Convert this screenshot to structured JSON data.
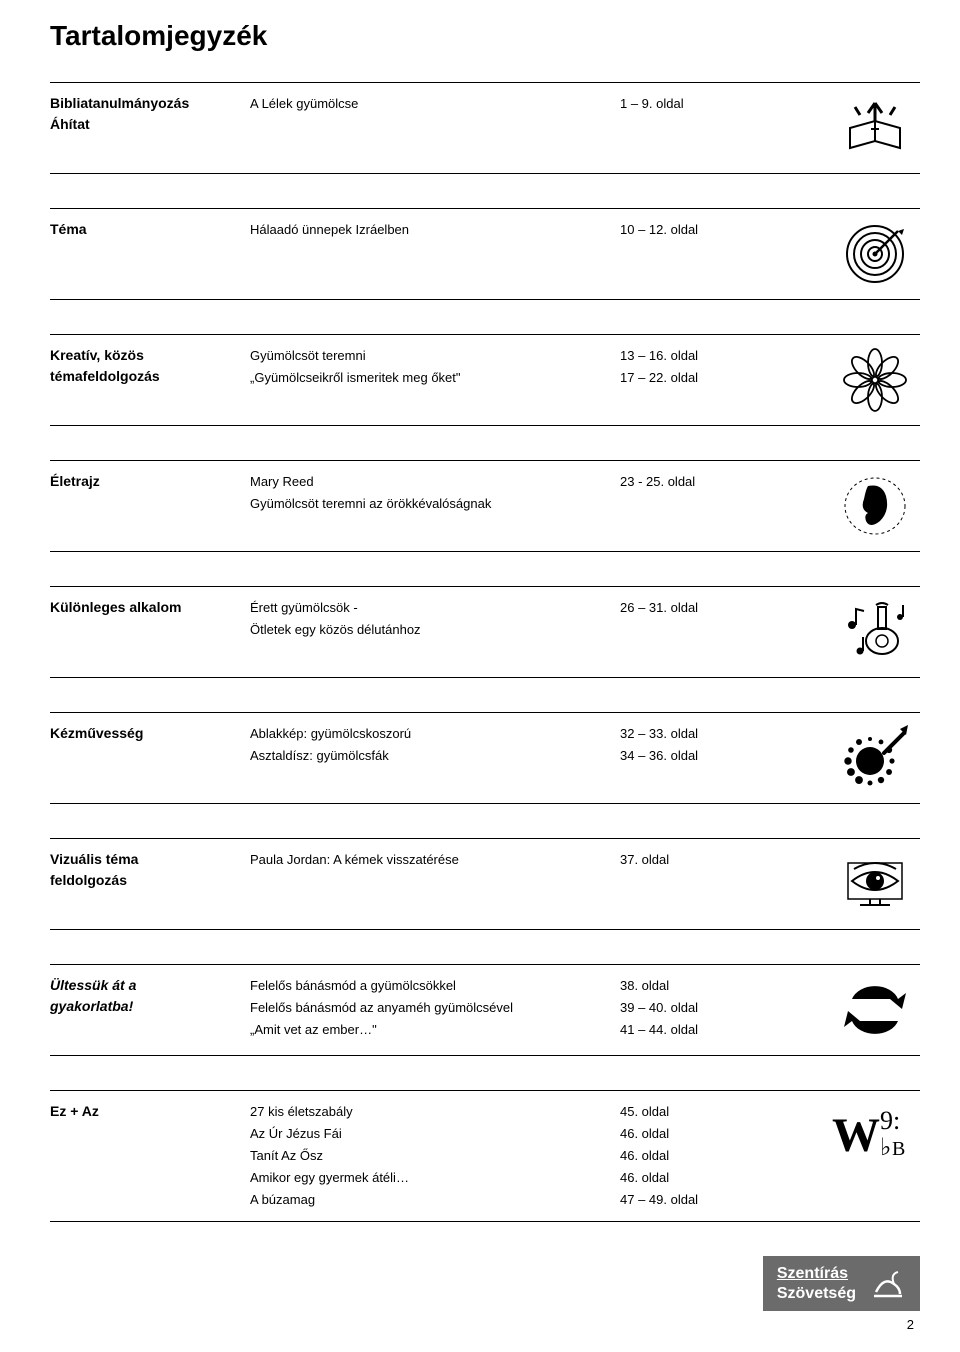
{
  "title": "Tartalomjegyzék",
  "sections": [
    {
      "heading": "Bibliatanulmányozás\nÁhítat",
      "italic": false,
      "lines": [
        {
          "text": "A Lélek gyümölcse",
          "pages": "1 – 9. oldal"
        }
      ],
      "icon": "book"
    },
    {
      "heading": "Téma",
      "italic": false,
      "lines": [
        {
          "text": "Hálaadó ünnepek Izráelben",
          "pages": "10 – 12. oldal"
        }
      ],
      "icon": "target"
    },
    {
      "heading": "Kreatív, közös\ntémafeldolgozás",
      "italic": false,
      "lines": [
        {
          "text": "Gyümölcsöt teremni",
          "pages": "13 – 16. oldal"
        },
        {
          "text": "„Gyümölcseikről ismeritek meg őket\"",
          "pages": "17 – 22. oldal"
        }
      ],
      "icon": "flower"
    },
    {
      "heading": "Életrajz",
      "italic": false,
      "lines": [
        {
          "text": "Mary Reed",
          "pages": "23 - 25. oldal"
        },
        {
          "text": "Gyümölcsöt teremni az örökkévalóságnak",
          "pages": ""
        }
      ],
      "icon": "head"
    },
    {
      "heading": "Különleges alkalom",
      "italic": false,
      "lines": [
        {
          "text": "Érett gyümölcsök -",
          "pages": "26 – 31. oldal"
        },
        {
          "text": "Ötletek egy közös délutánhoz",
          "pages": ""
        }
      ],
      "icon": "music"
    },
    {
      "heading": "Kézművesség",
      "italic": false,
      "lines": [
        {
          "text": "Ablakkép: gyümölcskoszorú",
          "pages": "32 – 33. oldal"
        },
        {
          "text": "Asztaldísz: gyümölcsfák",
          "pages": "34 – 36. oldal"
        }
      ],
      "icon": "splat"
    },
    {
      "heading": "Vizuális téma\nfeldolgozás",
      "italic": false,
      "lines": [
        {
          "text": "Paula Jordan: A kémek visszatérése",
          "pages": "37. oldal"
        }
      ],
      "icon": "eye"
    },
    {
      "heading": "Ültessük át a\ngyakorlatba!",
      "italic": true,
      "lines": [
        {
          "text": "Felelős bánásmód a gyümölcsökkel",
          "pages": "38. oldal"
        },
        {
          "text": "Felelős bánásmód az anyaméh gyümölcsével",
          "pages": "39 – 40. oldal"
        },
        {
          "text": "„Amit vet az ember…\"",
          "pages": "41 – 44. oldal"
        }
      ],
      "icon": "arrows"
    },
    {
      "heading": "Ez + Az",
      "italic": false,
      "lines": [
        {
          "text": "27 kis életszabály",
          "pages": "45. oldal"
        },
        {
          "text": "Az Úr Jézus Fái",
          "pages": "46. oldal"
        },
        {
          "text": "Tanít Az Ősz",
          "pages": "46. oldal"
        },
        {
          "text": "Amikor egy gyermek átéli…",
          "pages": "46. oldal"
        },
        {
          "text": "A búzamag",
          "pages": "47 – 49. oldal"
        }
      ],
      "icon": "letters"
    }
  ],
  "footer": {
    "line1": "Szentírás",
    "line2": "Szövetség"
  },
  "pagenum": "2",
  "colors": {
    "text": "#000000",
    "bg": "#ffffff",
    "footer_bg": "#6b6b6b",
    "footer_text": "#ffffff",
    "rule": "#000000"
  }
}
